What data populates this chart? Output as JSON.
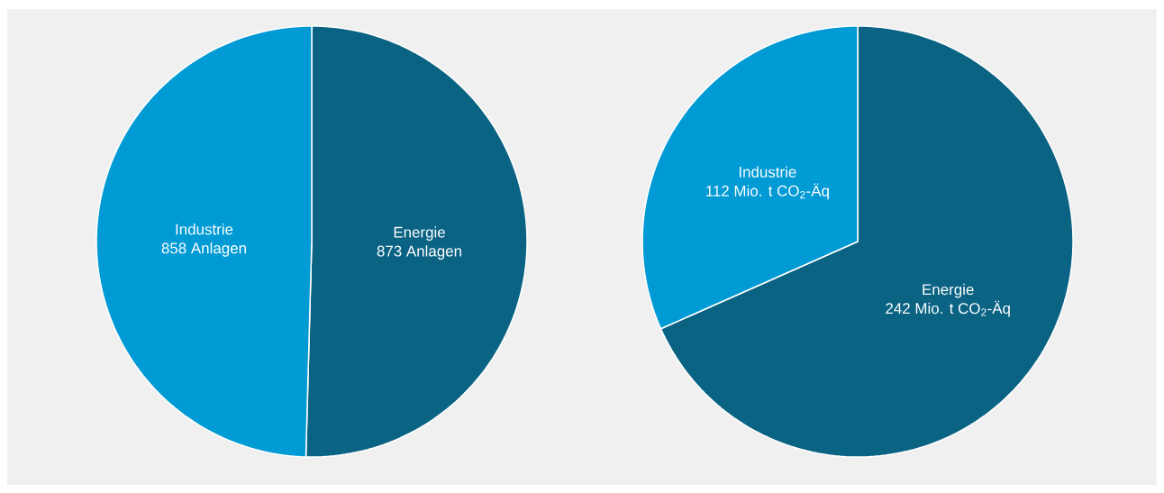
{
  "chart_data": [
    {
      "type": "pie",
      "categories": [
        "Energie",
        "Industrie"
      ],
      "values": [
        873,
        858
      ],
      "colors": [
        "#0b6384",
        "#009ad4"
      ],
      "value_labels": [
        "873 Anlagen",
        "858 Anlagen"
      ]
    },
    {
      "type": "pie",
      "categories": [
        "Energie",
        "Industrie"
      ],
      "values": [
        242,
        112
      ],
      "colors": [
        "#0b6384",
        "#009ad4"
      ],
      "value_labels": [
        "242 Mio. t CO$_{2}$-Äq",
        "112 Mio. t CO$_{2}$-Äq"
      ]
    }
  ]
}
